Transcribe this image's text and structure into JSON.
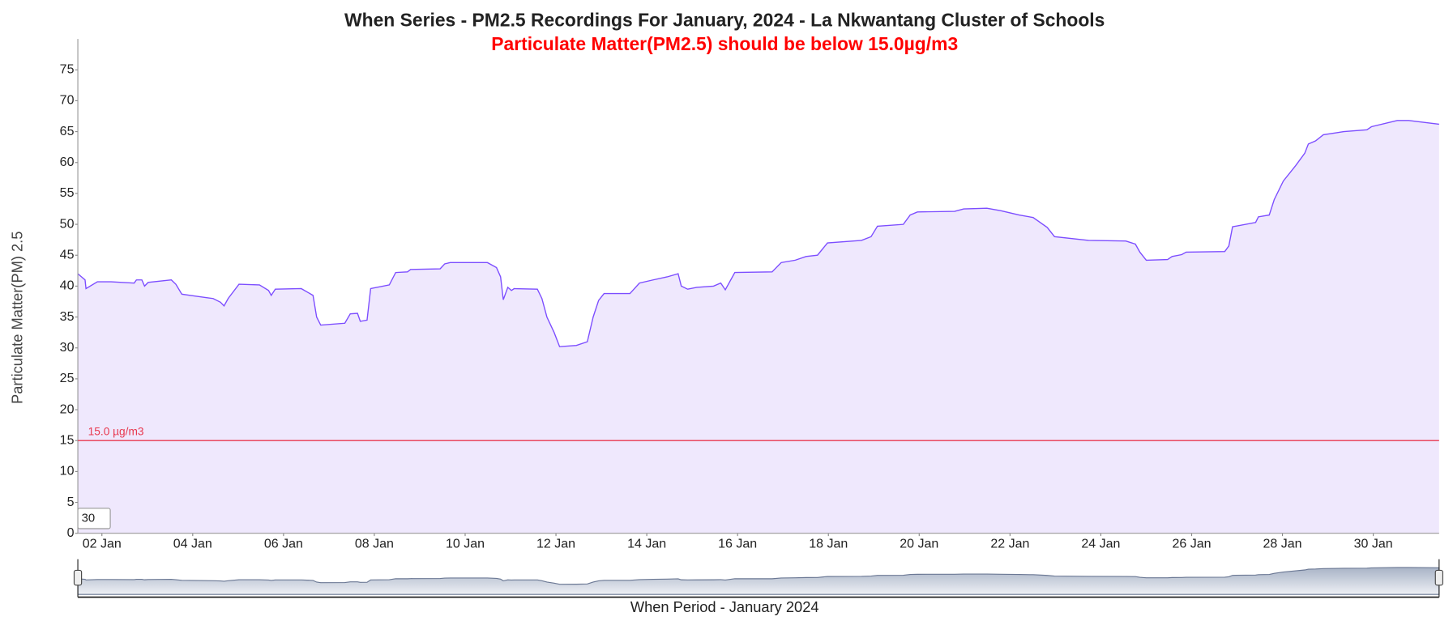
{
  "chart_data": {
    "type": "line",
    "title": "When Series - PM2.5 Recordings For January, 2024 - La Nkwantang Cluster of Schools",
    "subtitle": "Particulate Matter(PM2.5) should be below 15.0µg/m3",
    "y_label": "Particulate Matter(PM) 2.5",
    "x_label": "When Period - January 2024",
    "roll_period": 30,
    "threshold": {
      "value": 15,
      "label": "15.0 µg/m3",
      "color": "#e8384f"
    },
    "xlim": [
      1.47,
      31.45
    ],
    "xticks": [
      {
        "value": 2,
        "label": "02 Jan"
      },
      {
        "value": 4,
        "label": "04 Jan"
      },
      {
        "value": 6,
        "label": "06 Jan"
      },
      {
        "value": 8,
        "label": "08 Jan"
      },
      {
        "value": 10,
        "label": "10 Jan"
      },
      {
        "value": 12,
        "label": "12 Jan"
      },
      {
        "value": 14,
        "label": "14 Jan"
      },
      {
        "value": 16,
        "label": "16 Jan"
      },
      {
        "value": 18,
        "label": "18 Jan"
      },
      {
        "value": 20,
        "label": "20 Jan"
      },
      {
        "value": 22,
        "label": "22 Jan"
      },
      {
        "value": 24,
        "label": "24 Jan"
      },
      {
        "value": 26,
        "label": "26 Jan"
      },
      {
        "value": 28,
        "label": "28 Jan"
      },
      {
        "value": 30,
        "label": "30 Jan"
      }
    ],
    "ylim": [
      0,
      80
    ],
    "yticks": [
      0,
      5,
      10,
      15,
      20,
      25,
      30,
      35,
      40,
      45,
      50,
      55,
      60,
      65,
      70,
      75
    ],
    "grid": false,
    "x": [
      1.47,
      1.63,
      1.65,
      1.9,
      2.2,
      2.71,
      2.76,
      2.88,
      2.94,
      3.02,
      3.53,
      3.63,
      3.76,
      3.94,
      4.45,
      4.61,
      4.69,
      4.78,
      5.02,
      5.47,
      5.67,
      5.73,
      5.82,
      6.39,
      6.65,
      6.73,
      6.82,
      7.35,
      7.47,
      7.63,
      7.69,
      7.84,
      7.92,
      8.33,
      8.47,
      8.73,
      8.8,
      9.45,
      9.55,
      9.67,
      10.49,
      10.69,
      10.78,
      10.84,
      10.94,
      11.02,
      11.08,
      11.59,
      11.69,
      11.8,
      11.96,
      12.08,
      12.45,
      12.69,
      12.82,
      12.94,
      13.06,
      13.63,
      13.84,
      14.14,
      14.45,
      14.69,
      14.76,
      14.9,
      15.1,
      15.47,
      15.63,
      15.73,
      15.94,
      16.76,
      16.96,
      17.27,
      17.51,
      17.76,
      17.98,
      18.73,
      18.94,
      19.08,
      19.65,
      19.8,
      19.96,
      20.78,
      20.98,
      21.49,
      21.8,
      22.2,
      22.51,
      22.82,
      22.98,
      23.73,
      24.55,
      24.76,
      24.86,
      25,
      25.47,
      25.57,
      25.78,
      25.88,
      26.73,
      26.82,
      26.9,
      27.41,
      27.47,
      27.71,
      27.82,
      28.02,
      28.29,
      28.49,
      28.57,
      28.73,
      28.9,
      29.35,
      29.86,
      29.96,
      30.53,
      30.78,
      31.45
    ],
    "series": [
      {
        "color": "#7c4dff",
        "fill": "#efe8fd",
        "values": [
          42,
          41,
          39.6,
          40.7,
          40.7,
          40.5,
          41,
          41,
          40,
          40.6,
          41,
          40.3,
          38.7,
          38.5,
          38,
          37.4,
          36.8,
          38,
          40.3,
          40.2,
          39.3,
          38.5,
          39.5,
          39.6,
          38.5,
          35,
          33.7,
          34,
          35.5,
          35.6,
          34.3,
          34.5,
          39.6,
          40.2,
          42.2,
          42.3,
          42.7,
          42.8,
          43.6,
          43.8,
          43.8,
          43,
          41.5,
          37.8,
          39.8,
          39.3,
          39.6,
          39.5,
          38,
          35,
          32.5,
          30.2,
          30.4,
          31,
          35,
          37.7,
          38.8,
          38.8,
          40.5,
          41,
          41.5,
          42,
          40,
          39.5,
          39.8,
          40,
          40.5,
          39.4,
          42.2,
          42.3,
          43.8,
          44.2,
          44.8,
          45,
          47,
          47.4,
          48,
          49.7,
          50,
          51.5,
          52,
          52.1,
          52.5,
          52.6,
          52.2,
          51.5,
          51.1,
          49.5,
          48,
          47.4,
          47.3,
          46.8,
          45.5,
          44.2,
          44.3,
          44.8,
          45.1,
          45.5,
          45.6,
          46.5,
          49.6,
          50.3,
          51.2,
          51.5,
          54,
          57,
          59.5,
          61.5,
          63,
          63.5,
          64.5,
          65,
          65.3,
          65.8,
          66.8,
          66.8,
          66.2
        ]
      }
    ]
  }
}
